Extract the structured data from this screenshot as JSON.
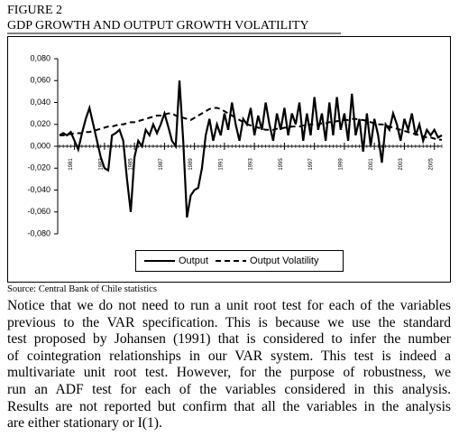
{
  "figure_label": "FIGURE 2",
  "chart_data": {
    "type": "line",
    "title": "GDP GROWTH AND OUTPUT GROWTH VOLATILITY",
    "x": [
      1980,
      1980.25,
      1980.5,
      1980.75,
      1981,
      1981.25,
      1981.5,
      1981.75,
      1982,
      1982.25,
      1982.5,
      1982.75,
      1983,
      1983.25,
      1983.5,
      1983.75,
      1984,
      1984.25,
      1984.5,
      1984.75,
      1985,
      1985.25,
      1985.5,
      1985.75,
      1986,
      1986.25,
      1986.5,
      1986.75,
      1987,
      1987.25,
      1987.5,
      1987.75,
      1988,
      1988.25,
      1988.5,
      1988.75,
      1989,
      1989.25,
      1989.5,
      1989.75,
      1990,
      1990.25,
      1990.5,
      1990.75,
      1991,
      1991.25,
      1991.5,
      1991.75,
      1992,
      1992.25,
      1992.5,
      1992.75,
      1993,
      1993.25,
      1993.5,
      1993.75,
      1994,
      1994.25,
      1994.5,
      1994.75,
      1995,
      1995.25,
      1995.5,
      1995.75,
      1996,
      1996.25,
      1996.5,
      1996.75,
      1997,
      1997.25,
      1997.5,
      1997.75,
      1998,
      1998.25,
      1998.5,
      1998.75,
      1999,
      1999.25,
      1999.5,
      1999.75,
      2000,
      2000.25,
      2000.5,
      2000.75,
      2001,
      2001.25,
      2001.5,
      2001.75,
      2002,
      2002.25,
      2002.5,
      2002.75,
      2003,
      2003.25,
      2003.5,
      2003.75,
      2004,
      2004.25,
      2004.5,
      2004.75,
      2005,
      2005.25,
      2005.5
    ],
    "series": [
      {
        "name": "Output",
        "color": "#000000",
        "dash": false,
        "values": [
          0.01,
          0.012,
          0.01,
          0.013,
          0.005,
          -0.003,
          0.012,
          0.025,
          0.035,
          0.02,
          0.005,
          -0.01,
          -0.02,
          -0.022,
          0.01,
          0.012,
          0.015,
          0.005,
          -0.03,
          -0.06,
          -0.01,
          0.005,
          0.0,
          0.015,
          0.01,
          0.02,
          0.012,
          0.02,
          0.03,
          0.018,
          0.005,
          0.0,
          0.06,
          0.005,
          -0.065,
          -0.045,
          -0.04,
          -0.038,
          -0.02,
          0.01,
          0.025,
          0.005,
          0.02,
          0.01,
          0.03,
          0.015,
          0.04,
          0.02,
          0.005,
          0.025,
          0.02,
          0.035,
          0.01,
          0.028,
          0.015,
          0.04,
          0.02,
          0.005,
          0.03,
          0.015,
          0.035,
          0.01,
          0.03,
          0.02,
          0.04,
          0.005,
          0.03,
          0.01,
          0.045,
          0.015,
          0.03,
          0.005,
          0.04,
          0.01,
          0.045,
          0.015,
          0.03,
          0.005,
          0.048,
          0.01,
          0.025,
          -0.005,
          0.03,
          0.0,
          0.025,
          0.01,
          -0.015,
          0.02,
          0.015,
          0.03,
          0.02,
          0.005,
          0.025,
          0.015,
          0.03,
          0.01,
          0.02,
          0.005,
          0.015,
          0.01,
          0.015,
          0.008,
          0.01
        ]
      },
      {
        "name": "Output Volatility",
        "color": "#000000",
        "dash": true,
        "values": [
          0.01,
          0.01,
          0.011,
          0.011,
          0.012,
          0.012,
          0.012,
          0.013,
          0.013,
          0.014,
          0.015,
          0.016,
          0.017,
          0.018,
          0.018,
          0.019,
          0.02,
          0.02,
          0.021,
          0.022,
          0.022,
          0.023,
          0.024,
          0.025,
          0.026,
          0.027,
          0.028,
          0.028,
          0.029,
          0.03,
          0.03,
          0.028,
          0.027,
          0.026,
          0.025,
          0.024,
          0.026,
          0.028,
          0.03,
          0.032,
          0.034,
          0.035,
          0.035,
          0.034,
          0.032,
          0.03,
          0.028,
          0.026,
          0.024,
          0.022,
          0.02,
          0.019,
          0.018,
          0.017,
          0.016,
          0.015,
          0.015,
          0.015,
          0.016,
          0.016,
          0.017,
          0.017,
          0.018,
          0.018,
          0.018,
          0.019,
          0.019,
          0.02,
          0.02,
          0.02,
          0.021,
          0.021,
          0.022,
          0.022,
          0.023,
          0.023,
          0.024,
          0.024,
          0.025,
          0.025,
          0.024,
          0.024,
          0.023,
          0.022,
          0.021,
          0.02,
          0.02,
          0.019,
          0.018,
          0.017,
          0.016,
          0.015,
          0.014,
          0.013,
          0.012,
          0.011,
          0.01,
          0.009,
          0.008,
          0.008,
          0.007,
          0.006,
          0.006
        ]
      }
    ],
    "xlim": [
      1980,
      2005.5
    ],
    "xticks": [
      1981,
      1983,
      1985,
      1987,
      1989,
      1991,
      1993,
      1995,
      1997,
      1999,
      2001,
      2003,
      2005
    ],
    "ylim": [
      -0.08,
      0.08
    ],
    "yticks": [
      {
        "value": -0.08,
        "label": "-0,080"
      },
      {
        "value": -0.06,
        "label": "-0,060"
      },
      {
        "value": -0.04,
        "label": "-0,040"
      },
      {
        "value": -0.02,
        "label": "-0,020"
      },
      {
        "value": 0,
        "label": "0,000"
      },
      {
        "value": 0.02,
        "label": "0,020"
      },
      {
        "value": 0.04,
        "label": "0,040"
      },
      {
        "value": 0.06,
        "label": "0,060"
      },
      {
        "value": 0.08,
        "label": "0,080"
      }
    ],
    "legend": "bottom",
    "grid": false
  },
  "source": "Source: Central Bank of Chile statistics",
  "body_lines": [
    "Notice that we do not need to run a unit root test for each of the variables",
    "previous to the VAR specification. This is because we use the standard",
    "test proposed by Johansen (1991) that is considered to infer the number",
    "of cointegration relationships in our VAR system. This test is indeed a",
    "multivariate unit root test. However, for the purpose of robustness, we",
    "run an ADF test for each of the variables considered in this analysis.",
    "Results are not reported but confirm that all the variables in the analysis",
    "are either stationary or I(1)."
  ]
}
